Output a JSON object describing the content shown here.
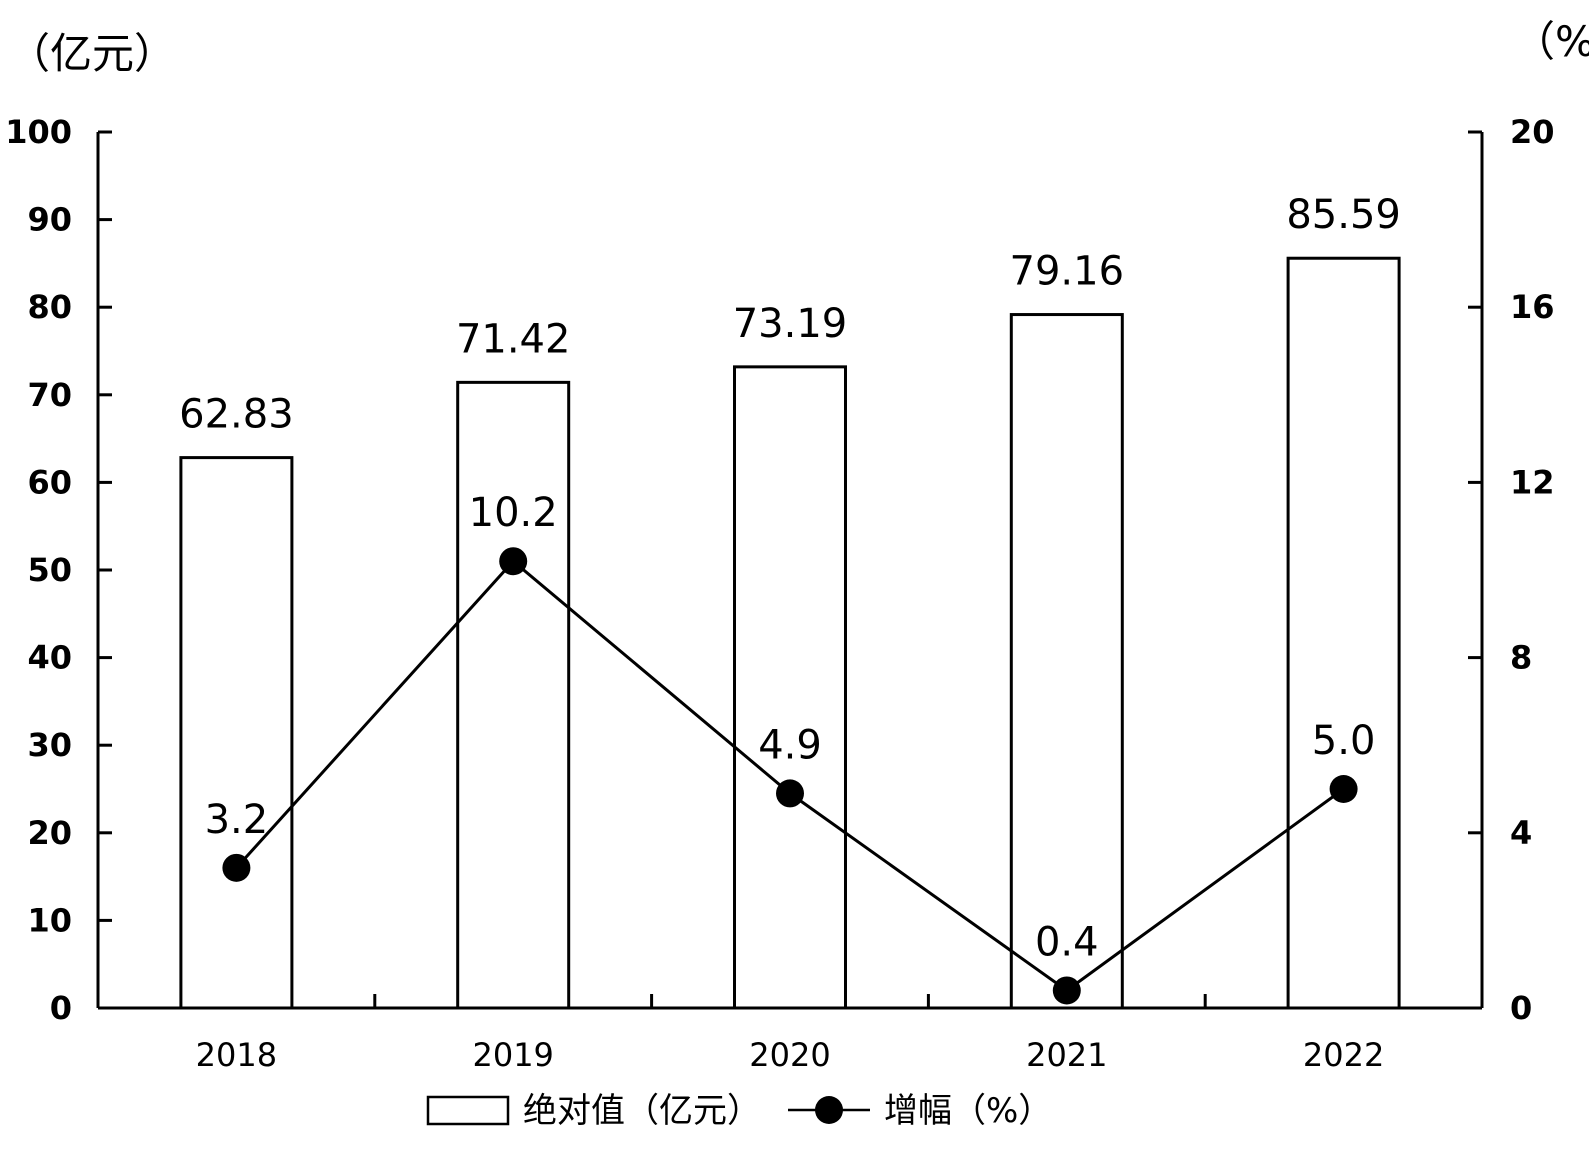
{
  "chart_data": {
    "type": "bar",
    "categories": [
      "2018",
      "2019",
      "2020",
      "2021",
      "2022"
    ],
    "series": [
      {
        "name": "绝对值（亿元）",
        "type": "bar",
        "axis": "left",
        "values": [
          62.83,
          71.42,
          73.19,
          79.16,
          85.59
        ],
        "labels": [
          "62.83",
          "71.42",
          "73.19",
          "79.16",
          "85.59"
        ]
      },
      {
        "name": "增幅（%）",
        "type": "line",
        "axis": "right",
        "values": [
          3.2,
          10.2,
          4.9,
          0.4,
          5.0
        ],
        "labels": [
          "3.2",
          "10.2",
          "4.9",
          "0.4",
          "5.0"
        ]
      }
    ],
    "left_unit": "（亿元）",
    "right_unit": "（%",
    "ylim_left": [
      0,
      100
    ],
    "ylim_right": [
      0,
      20
    ],
    "left_ticks": [
      "0",
      "10",
      "20",
      "30",
      "40",
      "50",
      "60",
      "70",
      "80",
      "90",
      "100"
    ],
    "right_ticks": [
      "0",
      "4",
      "8",
      "12",
      "16",
      "20"
    ],
    "grid": false,
    "legend_position": "bottom-center",
    "colors": {
      "bar_fill": "#ffffff",
      "bar_stroke": "#000000",
      "line": "#000000",
      "marker": "#000000"
    }
  }
}
